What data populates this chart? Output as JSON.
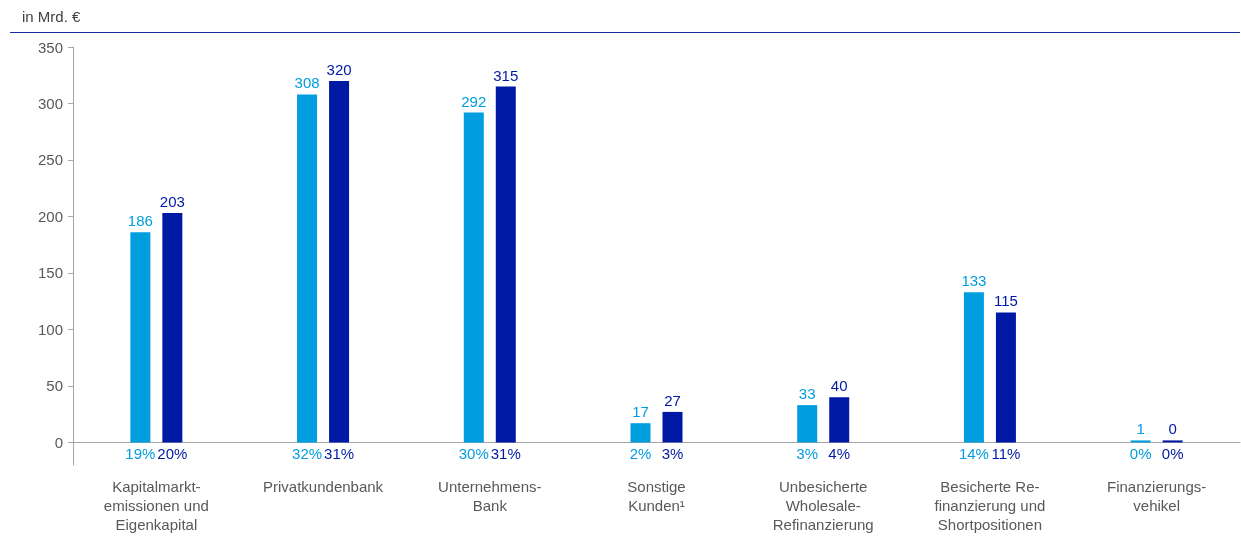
{
  "chart_data": {
    "type": "bar",
    "ylabel": "in Mrd. €",
    "categories": [
      "Kapitalmarkt-\nemissionen und\nEigenkapital",
      "Privatkundenbank",
      "Unternehmens-\nBank",
      "Sonstige\nKunden¹",
      "Unbesicherte\nWholesale-\nRefinanzierung",
      "Besicherte Re-\nfinanzierung und\nShortpositionen",
      "Finanzierungs-\nvehikel"
    ],
    "series": [
      {
        "color": "#009ddf",
        "values": [
          186,
          308,
          292,
          17,
          33,
          133,
          1
        ]
      },
      {
        "color": "#0019a5",
        "values": [
          203,
          320,
          315,
          27,
          40,
          115,
          0
        ]
      }
    ],
    "ylim": [
      -20,
      350
    ],
    "yticks": [
      0,
      50,
      100,
      150,
      200,
      250,
      300,
      350
    ],
    "grid": false,
    "data_labels": true,
    "annotations": [
      "19%",
      "20%",
      "32%",
      "31%",
      "30%",
      "31%",
      "2%",
      "3%",
      "3%",
      "4%",
      "14%",
      "11%",
      "0%",
      "0%"
    ]
  }
}
